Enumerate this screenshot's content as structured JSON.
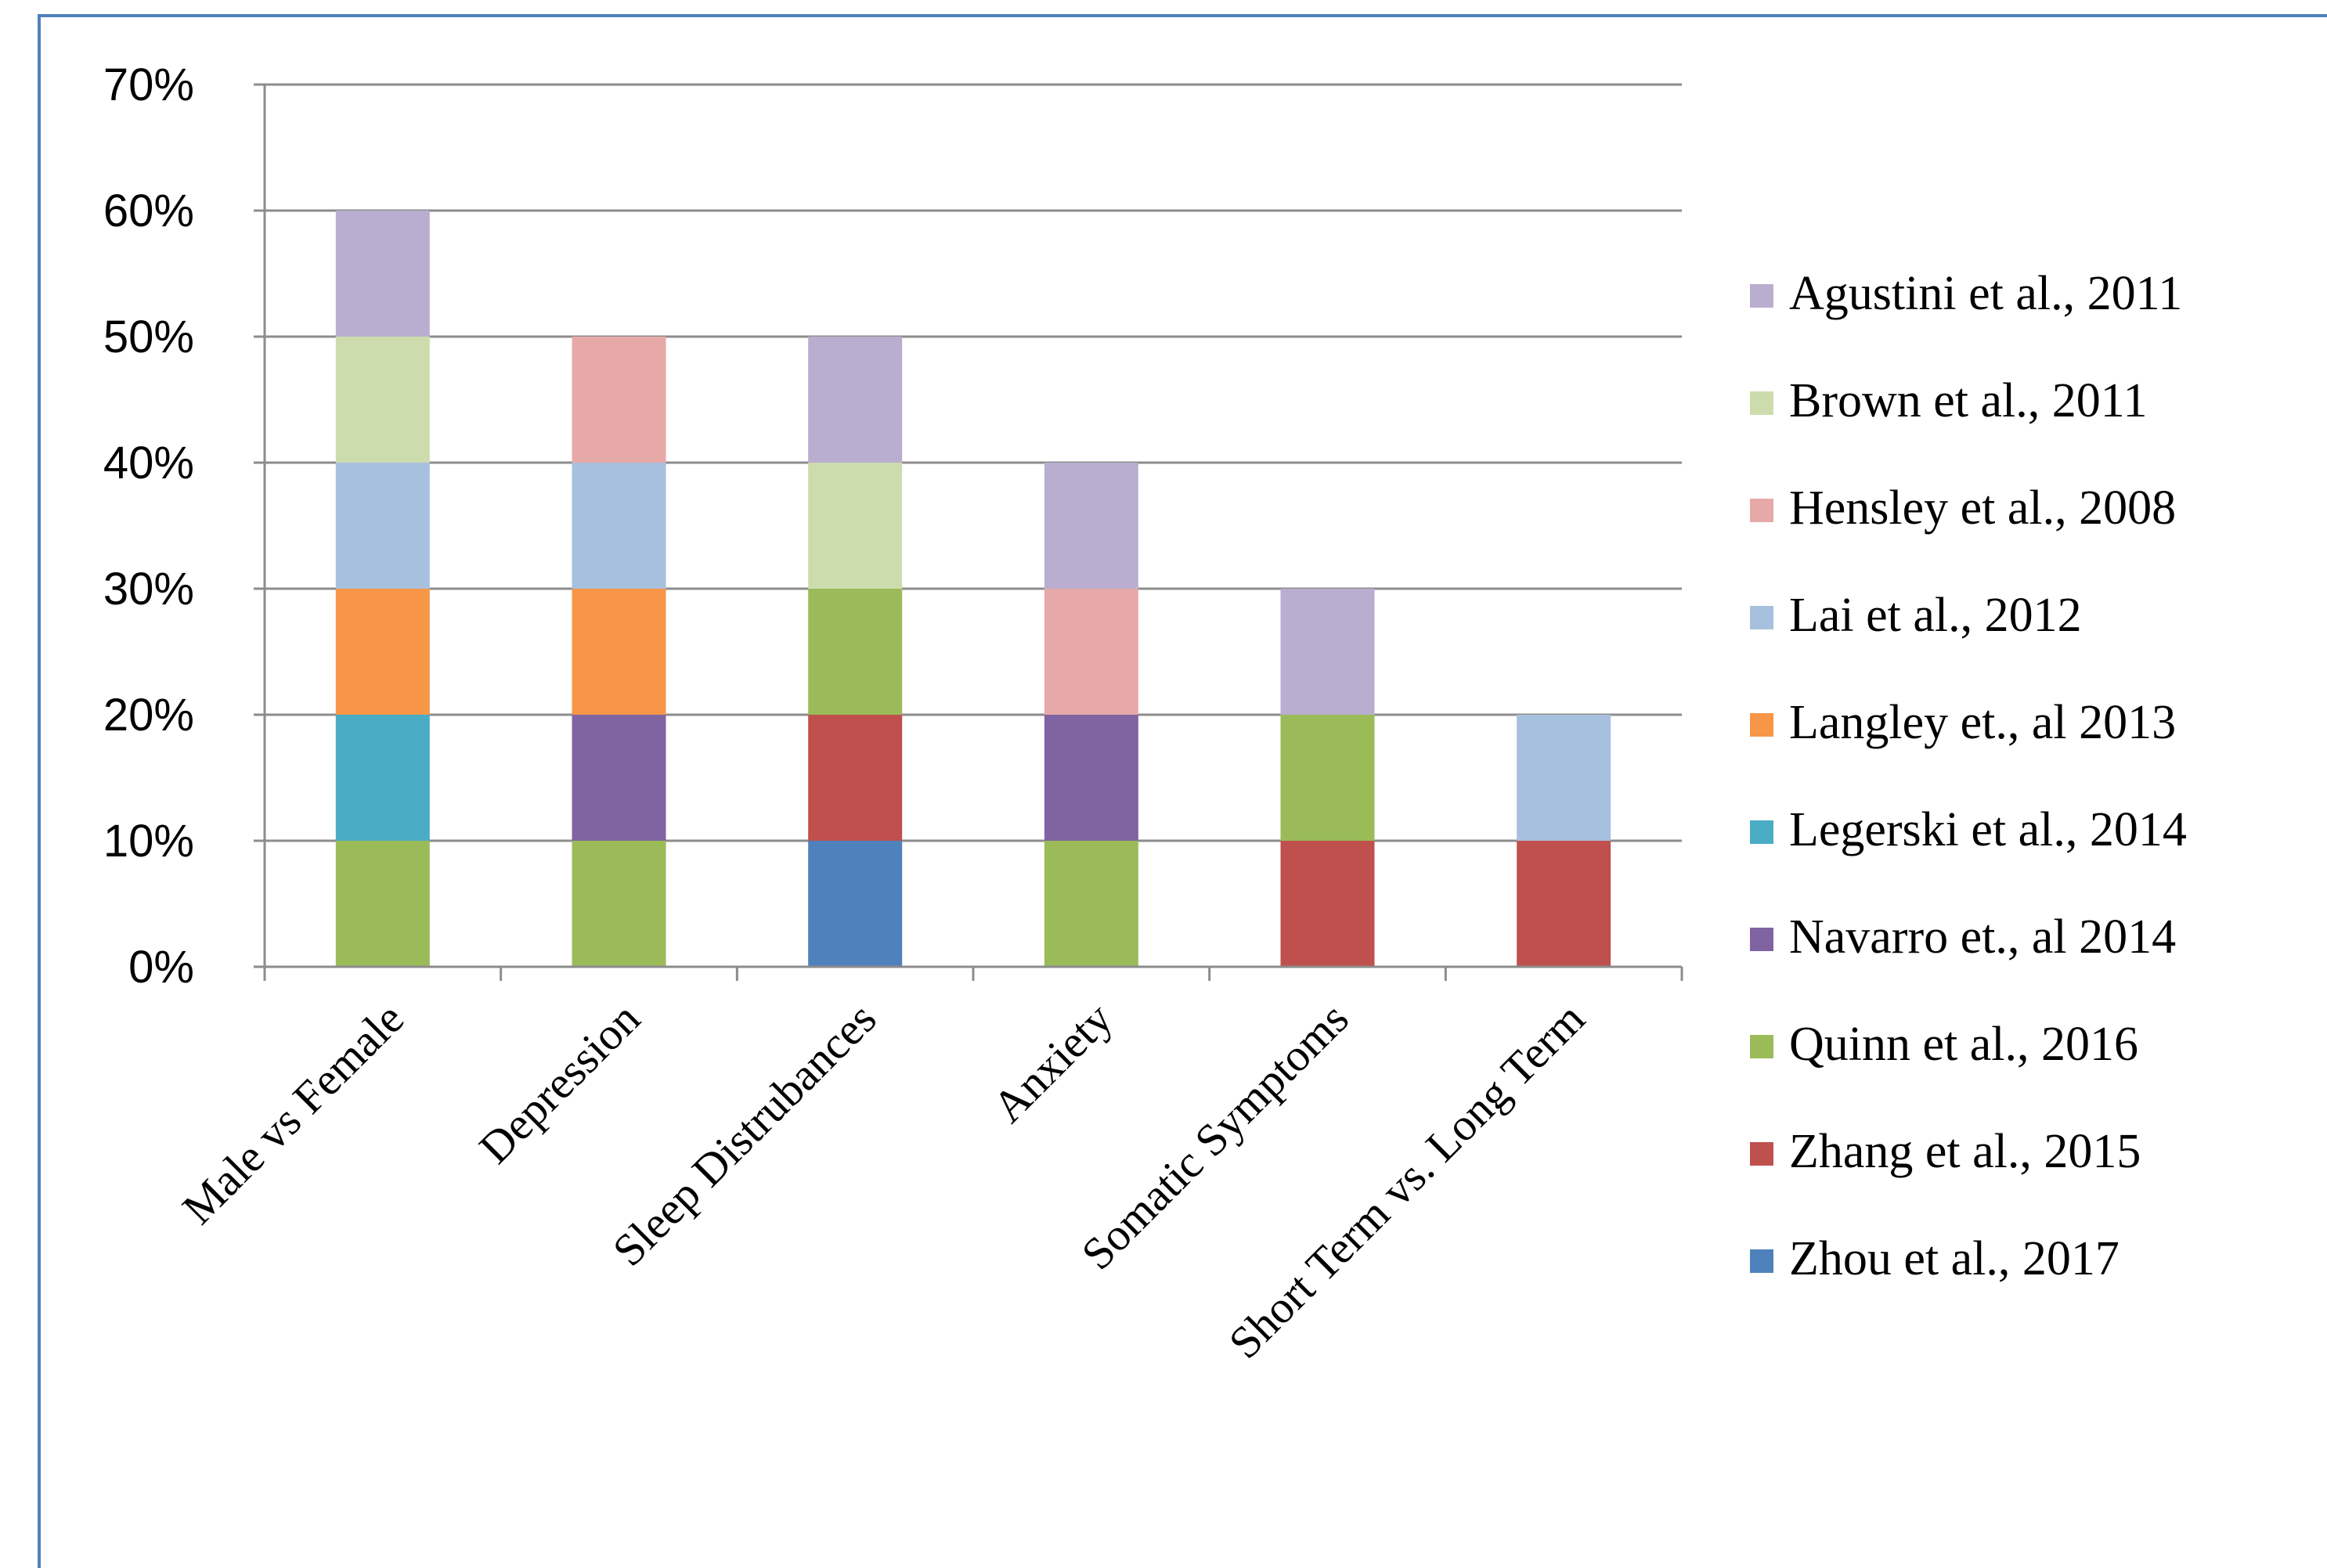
{
  "chart_data": {
    "type": "bar",
    "stacked": true,
    "title": "",
    "xlabel": "",
    "ylabel": "",
    "ylim": [
      0,
      70
    ],
    "yticks": [
      "0%",
      "10%",
      "20%",
      "30%",
      "40%",
      "50%",
      "60%",
      "70%"
    ],
    "y_unit": "%",
    "grid": "horizontal",
    "legend_position": "right",
    "categories": [
      "Male vs Female",
      "Depression",
      "Sleep Distrubances",
      "Anxiety",
      "Somatic Symptoms",
      "Short Term vs. Long Term"
    ],
    "series": [
      {
        "name": "Zhou et al., 2017",
        "color": "#4f81bd",
        "values": [
          0,
          0,
          10,
          0,
          0,
          0
        ]
      },
      {
        "name": "Zhang et al., 2015",
        "color": "#c0504d",
        "values": [
          0,
          0,
          10,
          0,
          10,
          10
        ]
      },
      {
        "name": "Quinn et al., 2016",
        "color": "#9bbb59",
        "values": [
          10,
          10,
          10,
          10,
          10,
          0
        ]
      },
      {
        "name": "Navarro et., al 2014",
        "color": "#8064a2",
        "values": [
          0,
          10,
          0,
          10,
          0,
          0
        ]
      },
      {
        "name": "Legerski et al., 2014",
        "color": "#4bacc6",
        "values": [
          10,
          0,
          0,
          0,
          0,
          0
        ]
      },
      {
        "name": "Langley et., al 2013",
        "color": "#f79646",
        "values": [
          10,
          10,
          0,
          0,
          0,
          0
        ]
      },
      {
        "name": "Lai et al., 2012",
        "color": "#a7c0de",
        "values": [
          10,
          10,
          0,
          0,
          0,
          10
        ]
      },
      {
        "name": "Hensley et al., 2008",
        "color": "#e6a9a8",
        "values": [
          0,
          10,
          0,
          10,
          0,
          0
        ]
      },
      {
        "name": "Brown et al., 2011",
        "color": "#cddcad",
        "values": [
          10,
          0,
          10,
          0,
          0,
          0
        ]
      },
      {
        "name": "Agustini et al., 2011",
        "color": "#b9aecf",
        "values": [
          10,
          0,
          10,
          10,
          10,
          0
        ]
      }
    ],
    "legend_order": [
      "Agustini et al., 2011",
      "Brown et al., 2011",
      "Hensley et al., 2008",
      "Lai et al., 2012",
      "Langley et., al 2013",
      "Legerski et al., 2014",
      "Navarro et., al 2014",
      "Quinn et al., 2016",
      "Zhang et al., 2015",
      "Zhou et al., 2017"
    ]
  }
}
